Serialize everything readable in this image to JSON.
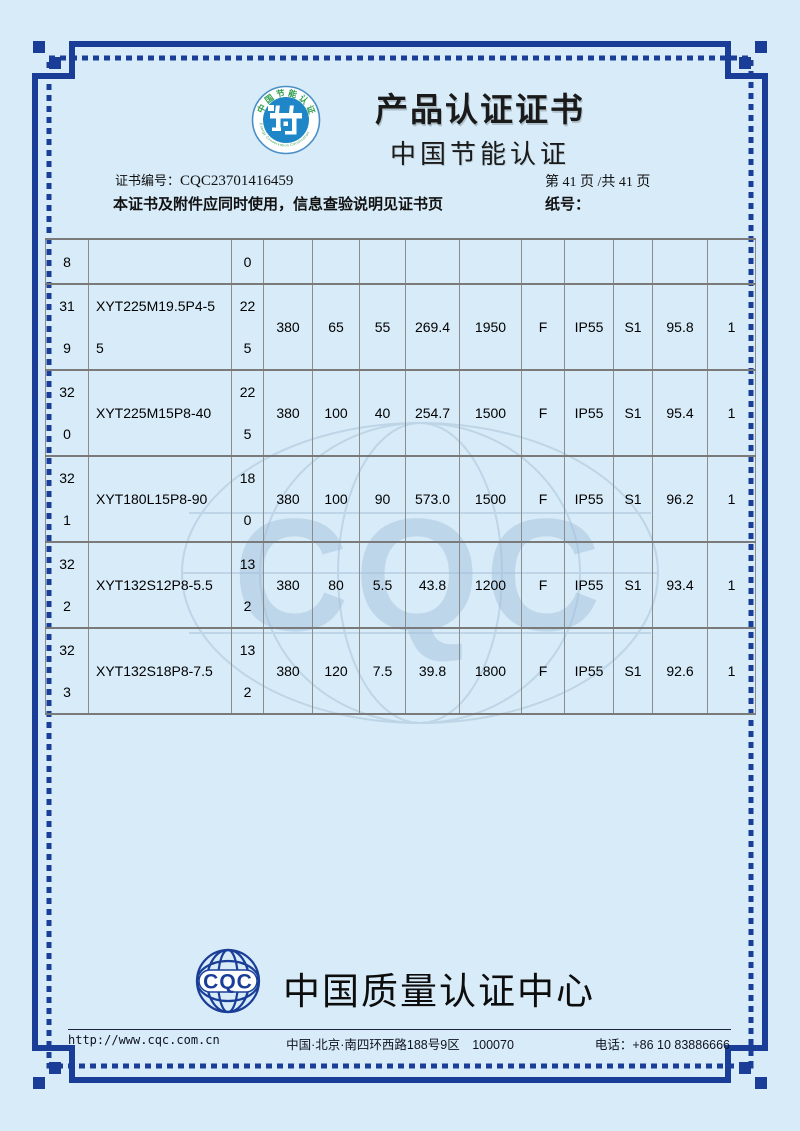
{
  "theme": {
    "page_bg": "#d7ebf8",
    "frame_navy": "#1a3e97",
    "grid_gray": "#8c8c8c",
    "title_color": "#1a1a1a",
    "logo_green": "#2f9e4e",
    "logo_blue": "#1f86c8",
    "watermark_blue": "#b9d2e4"
  },
  "header": {
    "title": "产品认证证书",
    "subtitle": "中国节能认证",
    "logo_ring_text_top": "中国节能认证",
    "logo_ring_text_bottom": "Energy Conservation Certification",
    "cert_no_label": "证书编号：",
    "cert_no": "CQC23701416459",
    "page_info": "第 41 页 /共 41 页",
    "usage_note": "本证书及附件应同时使用，信息查验说明见证书页",
    "paper_no_label": "纸号：",
    "paper_no": ""
  },
  "table": {
    "rows": [
      [
        "8",
        "",
        "0",
        "",
        "",
        "",
        "",
        "",
        "",
        "",
        "",
        "",
        ""
      ],
      [
        "31\n9",
        "XYT225M19.5P4-5\n5",
        "22\n5",
        "380",
        "65",
        "55",
        "269.4",
        "1950",
        "F",
        "IP55",
        "S1",
        "95.8",
        "1"
      ],
      [
        "32\n0",
        "XYT225M15P8-40",
        "22\n5",
        "380",
        "100",
        "40",
        "254.7",
        "1500",
        "F",
        "IP55",
        "S1",
        "95.4",
        "1"
      ],
      [
        "32\n1",
        "XYT180L15P8-90",
        "18\n0",
        "380",
        "100",
        "90",
        "573.0",
        "1500",
        "F",
        "IP55",
        "S1",
        "96.2",
        "1"
      ],
      [
        "32\n2",
        "XYT132S12P8-5.5",
        "13\n2",
        "380",
        "80",
        "5.5",
        "43.8",
        "1200",
        "F",
        "IP55",
        "S1",
        "93.4",
        "1"
      ],
      [
        "32\n3",
        "XYT132S18P8-7.5",
        "13\n2",
        "380",
        "120",
        "7.5",
        "39.8",
        "1800",
        "F",
        "IP55",
        "S1",
        "92.6",
        "1"
      ]
    ]
  },
  "watermark": {
    "text": "CQC"
  },
  "footer": {
    "org_logo_text": "CQC",
    "org_name": "中国质量认证中心",
    "website": "http://www.cqc.com.cn",
    "address": "中国·北京·南四环西路188号9区　100070",
    "phone": "电话：+86 10 83886666"
  }
}
